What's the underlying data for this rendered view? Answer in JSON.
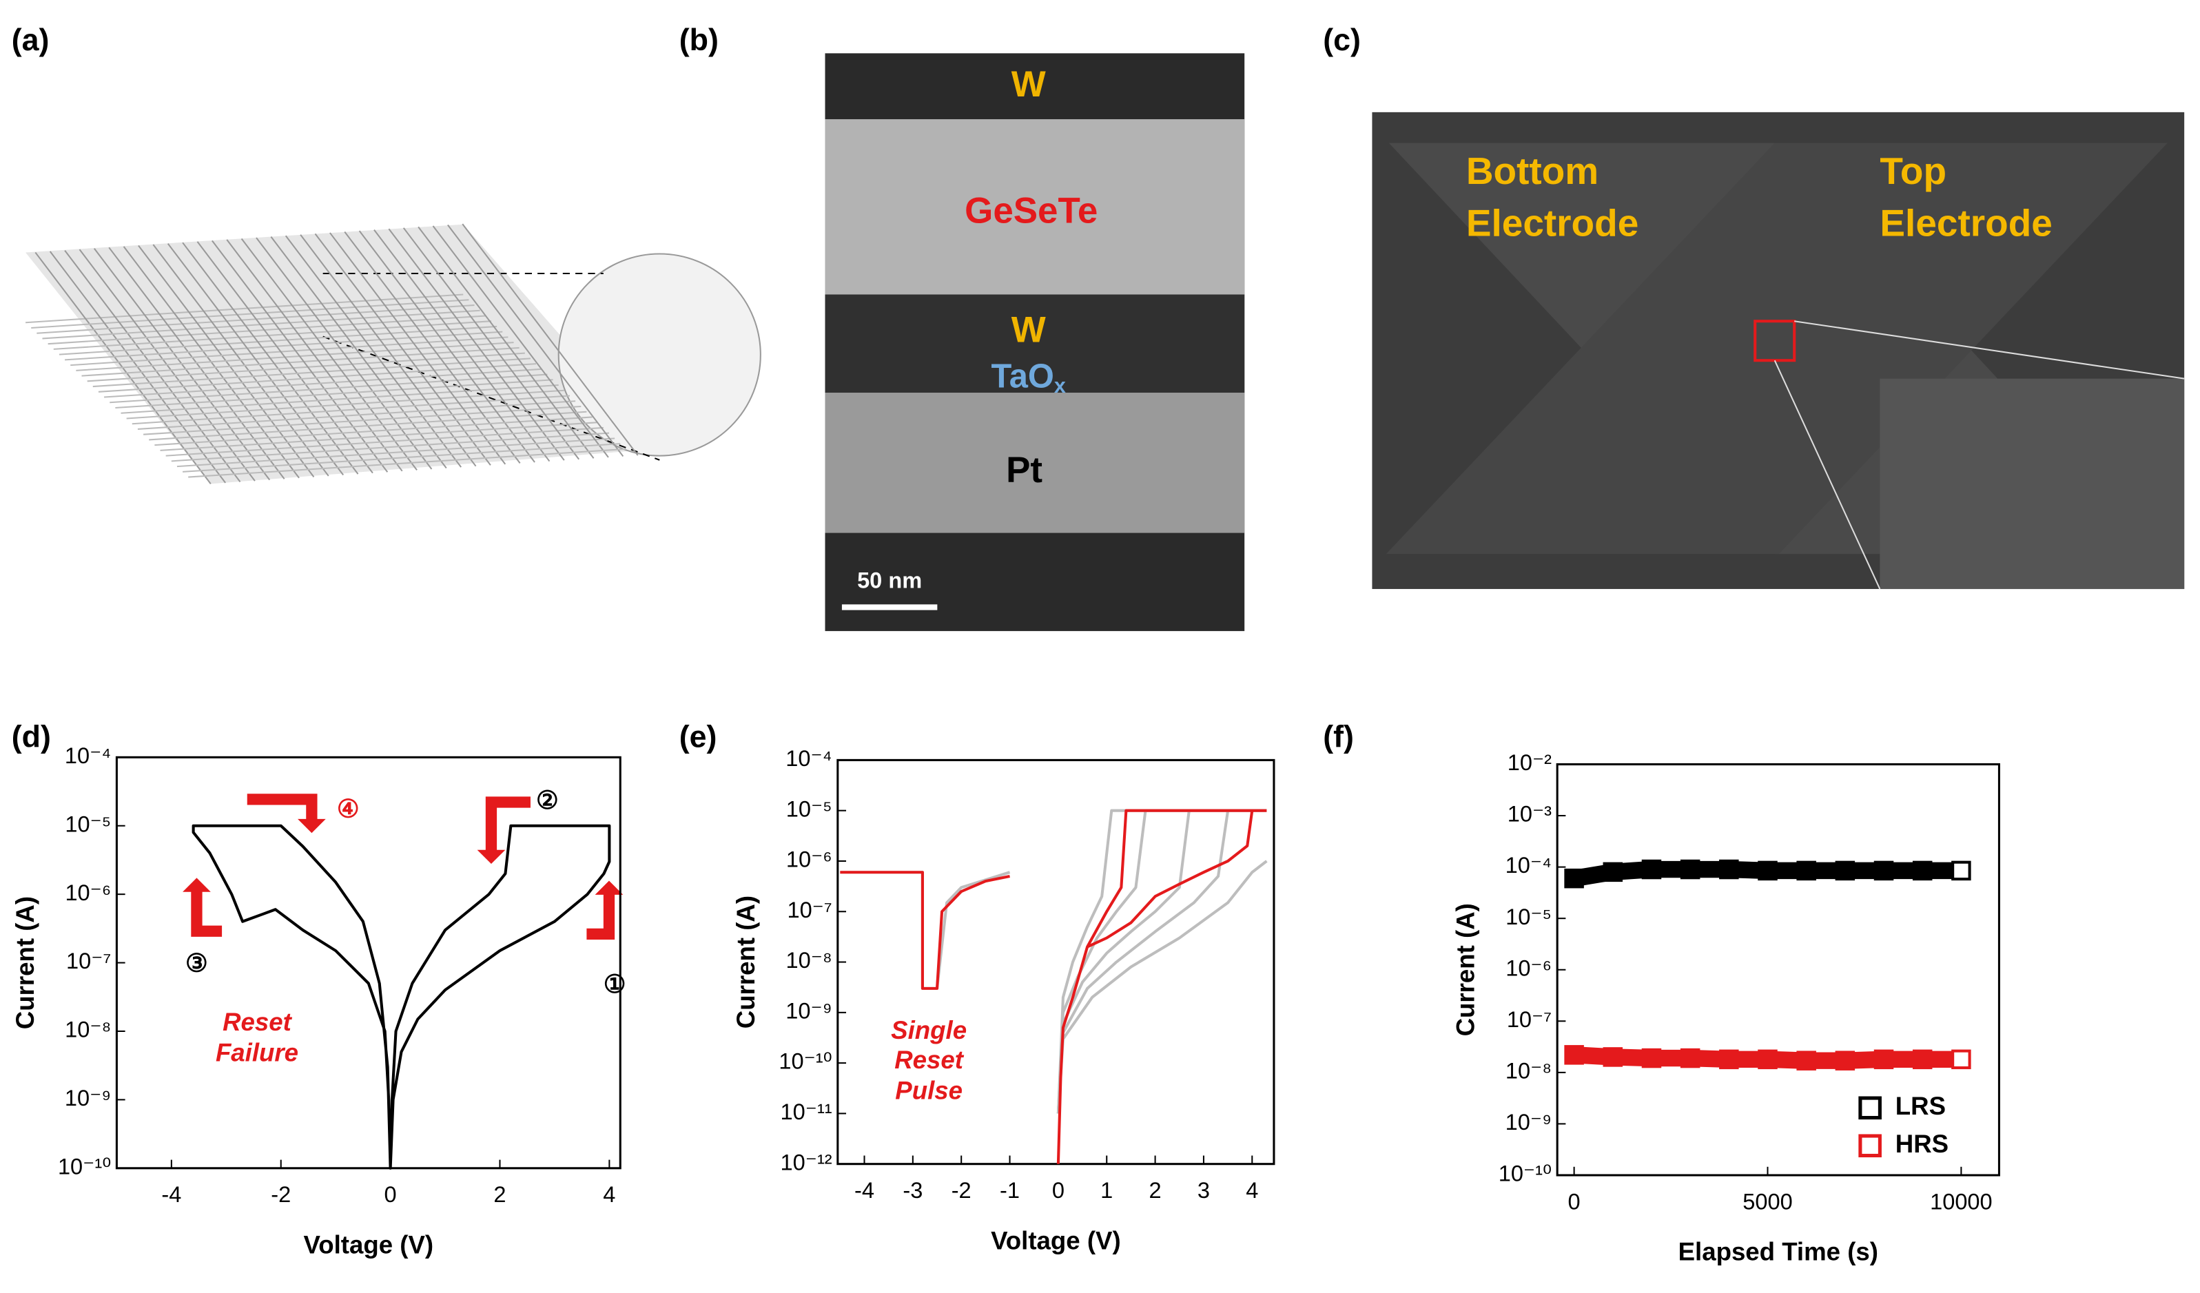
{
  "panels": {
    "a": {
      "label": "(a)"
    },
    "b": {
      "label": "(b)",
      "layers": [
        "W",
        "GeSeTe",
        "W"
      ],
      "oxide": {
        "text": "TaO",
        "subscript": "x"
      },
      "bottom": "Pt",
      "scale_bar": "50 nm"
    },
    "c": {
      "label": "(c)",
      "bottom_electrode": [
        "Bottom",
        "Electrode"
      ],
      "top_electrode": [
        "Top",
        "Electrode"
      ]
    },
    "d": {
      "label": "(d)"
    },
    "e": {
      "label": "(e)"
    },
    "f": {
      "label": "(f)"
    }
  },
  "chart_data": [
    {
      "type": "line",
      "log_y": true,
      "color": "#000000",
      "xlabel": "Voltage (V)",
      "ylabel": "Current (A)",
      "xlim": [
        -5,
        4.2
      ],
      "xticks": [
        -4,
        -2,
        0,
        2,
        4
      ],
      "ylim": [
        1e-10,
        0.0001
      ],
      "yticks": [
        {
          "value": 1e-10,
          "label": "10⁻¹⁰"
        },
        {
          "value": 1e-09,
          "label": "10⁻⁹"
        },
        {
          "value": 1e-08,
          "label": "10⁻⁸"
        },
        {
          "value": 1e-07,
          "label": "10⁻⁷"
        },
        {
          "value": 1e-06,
          "label": "10⁻⁶"
        },
        {
          "value": 1e-05,
          "label": "10⁻⁵"
        },
        {
          "value": 0.0001,
          "label": "10⁻⁴"
        }
      ],
      "x": [
        0,
        0.05,
        0.2,
        0.5,
        1,
        2,
        3,
        3.6,
        3.9,
        4,
        4,
        2.2,
        2.1,
        1.8,
        1,
        0.4,
        0.1,
        0.03,
        0,
        -0.03,
        -0.1,
        -0.4,
        -1,
        -1.6,
        -2.1,
        -2.7,
        -2.9,
        -3.3,
        -3.6,
        -3.6,
        -2,
        -1.6,
        -1,
        -0.5,
        -0.2,
        -0.05,
        0
      ],
      "values": [
        1e-10,
        1e-09,
        5e-09,
        1.5e-08,
        4e-08,
        1.5e-07,
        4e-07,
        1e-06,
        2e-06,
        3e-06,
        1e-05,
        1e-05,
        2e-06,
        1e-06,
        3e-07,
        5e-08,
        1e-08,
        1e-09,
        1e-10,
        1e-09,
        1e-08,
        5e-08,
        1.5e-07,
        3e-07,
        6e-07,
        4e-07,
        1e-06,
        4e-06,
        8e-06,
        1e-05,
        1e-05,
        5e-06,
        1.5e-06,
        4e-07,
        5e-08,
        3e-09,
        1e-10
      ],
      "annotations": [
        {
          "text": "①",
          "color": "#000000"
        },
        {
          "text": "②",
          "color": "#000000"
        },
        {
          "text": "③",
          "color": "#000000"
        },
        {
          "text": "④",
          "color": "#e41a1c"
        },
        {
          "text": "Reset",
          "color": "#e41a1c"
        },
        {
          "text": "Failure",
          "color": "#e41a1c"
        }
      ]
    },
    {
      "type": "line",
      "log_y": true,
      "xlabel": "Voltage (V)",
      "ylabel": "Current (A)",
      "xlim": [
        -4.55,
        4.45
      ],
      "xticks": [
        -4,
        -3,
        -2,
        -1,
        0,
        1,
        2,
        3,
        4
      ],
      "ylim": [
        1e-12,
        0.0001
      ],
      "yticks": [
        {
          "value": 1e-12,
          "label": "10⁻¹²"
        },
        {
          "value": 1e-11,
          "label": "10⁻¹¹"
        },
        {
          "value": 1e-10,
          "label": "10⁻¹⁰"
        },
        {
          "value": 1e-09,
          "label": "10⁻⁹"
        },
        {
          "value": 1e-08,
          "label": "10⁻⁸"
        },
        {
          "value": 1e-07,
          "label": "10⁻⁷"
        },
        {
          "value": 1e-06,
          "label": "10⁻⁶"
        },
        {
          "value": 1e-05,
          "label": "10⁻⁵"
        },
        {
          "value": 0.0001,
          "label": "10⁻⁴"
        }
      ],
      "series": [
        {
          "color": "#bdbdbd",
          "x": [
            0,
            0.1,
            0.4,
            0.8,
            1.2,
            1.6,
            1.8,
            4.3
          ],
          "values": [
            1e-11,
            1e-09,
            5e-09,
            3e-08,
            1e-07,
            3e-07,
            1e-05,
            1e-05
          ]
        },
        {
          "color": "#bdbdbd",
          "x": [
            0,
            0.1,
            0.5,
            1,
            1.5,
            2,
            2.5,
            2.7,
            4.3
          ],
          "values": [
            1e-11,
            6e-10,
            4e-09,
            1.5e-08,
            4e-08,
            1e-07,
            3e-07,
            1e-05,
            1e-05
          ]
        },
        {
          "color": "#bdbdbd",
          "x": [
            0,
            0.1,
            0.6,
            1.2,
            2,
            2.8,
            3.3,
            3.5,
            4.3
          ],
          "values": [
            1e-11,
            4e-10,
            3e-09,
            1e-08,
            4e-08,
            1.5e-07,
            5e-07,
            1e-05,
            1e-05
          ]
        },
        {
          "color": "#bdbdbd",
          "x": [
            0,
            0.1,
            0.7,
            1.5,
            2.5,
            3.5,
            4,
            4.3
          ],
          "values": [
            1e-11,
            3e-10,
            2e-09,
            8e-09,
            3e-08,
            1.5e-07,
            6e-07,
            1e-06
          ]
        },
        {
          "color": "#bdbdbd",
          "x": [
            0,
            0.1,
            0.3,
            0.6,
            0.9,
            1.1,
            4.3
          ],
          "values": [
            1e-11,
            2e-09,
            1e-08,
            5e-08,
            2e-07,
            1e-05,
            1e-05
          ]
        },
        {
          "color": "#bdbdbd",
          "x": [
            -4.5,
            -2.8,
            -2.8,
            -2.5,
            -2.3,
            -2,
            -1
          ],
          "values": [
            6e-07,
            6e-07,
            3e-09,
            3e-09,
            1.5e-07,
            3e-07,
            6e-07
          ]
        },
        {
          "color": "#e41a1c",
          "x": [
            -4.5,
            -2.8,
            -2.8,
            -2.5,
            -2.4,
            -2,
            -1.5,
            -1
          ],
          "values": [
            6e-07,
            6e-07,
            3e-09,
            3e-09,
            1e-07,
            2.5e-07,
            4e-07,
            5e-07
          ]
        },
        {
          "color": "#e41a1c",
          "x": [
            0,
            0.05,
            0.1,
            0.3,
            0.6,
            1,
            1.3,
            1.4,
            4.3
          ],
          "values": [
            1e-12,
            5e-11,
            5e-10,
            2e-09,
            2e-08,
            1e-07,
            3e-07,
            1e-05,
            1e-05
          ]
        },
        {
          "color": "#e41a1c",
          "x": [
            0.6,
            1,
            1.5,
            2,
            2.5,
            3,
            3.5,
            3.9,
            4
          ],
          "values": [
            2e-08,
            3e-08,
            6e-08,
            2e-07,
            3.5e-07,
            6e-07,
            1e-06,
            2e-06,
            1e-05
          ]
        }
      ],
      "annotations": [
        {
          "text": "Single",
          "color": "#e41a1c"
        },
        {
          "text": "Reset",
          "color": "#e41a1c"
        },
        {
          "text": "Pulse",
          "color": "#e41a1c"
        }
      ]
    },
    {
      "type": "line",
      "log_y": true,
      "markers": "square",
      "legend": "lower right",
      "xlabel": "Elapsed Time (s)",
      "ylabel": "Current (A)",
      "xlim": [
        -435,
        10980
      ],
      "xticks": [
        0,
        5000,
        10000
      ],
      "ylim": [
        1e-10,
        0.01
      ],
      "yticks": [
        {
          "value": 1e-10,
          "label": "10⁻¹⁰"
        },
        {
          "value": 1e-09,
          "label": "10⁻⁹"
        },
        {
          "value": 1e-08,
          "label": "10⁻⁸"
        },
        {
          "value": 1e-07,
          "label": "10⁻⁷"
        },
        {
          "value": 1e-06,
          "label": "10⁻⁶"
        },
        {
          "value": 1e-05,
          "label": "10⁻⁵"
        },
        {
          "value": 0.0001,
          "label": "10⁻⁴"
        },
        {
          "value": 0.001,
          "label": "10⁻³"
        },
        {
          "value": 0.01,
          "label": "10⁻²"
        }
      ],
      "series": [
        {
          "name": "LRS",
          "color": "#000000",
          "x": [
            0,
            1000,
            2000,
            3000,
            4000,
            5000,
            6000,
            7000,
            8000,
            9000,
            10000
          ],
          "values": [
            6e-05,
            8e-05,
            9e-05,
            9e-05,
            9e-05,
            8.5e-05,
            8.5e-05,
            8.5e-05,
            8.5e-05,
            8.5e-05,
            8.5e-05
          ]
        },
        {
          "name": "HRS",
          "color": "#e41a1c",
          "x": [
            0,
            1000,
            2000,
            3000,
            4000,
            5000,
            6000,
            7000,
            8000,
            9000,
            10000
          ],
          "values": [
            2.2e-08,
            2e-08,
            1.9e-08,
            1.9e-08,
            1.8e-08,
            1.8e-08,
            1.7e-08,
            1.7e-08,
            1.8e-08,
            1.8e-08,
            1.8e-08
          ]
        }
      ]
    }
  ]
}
